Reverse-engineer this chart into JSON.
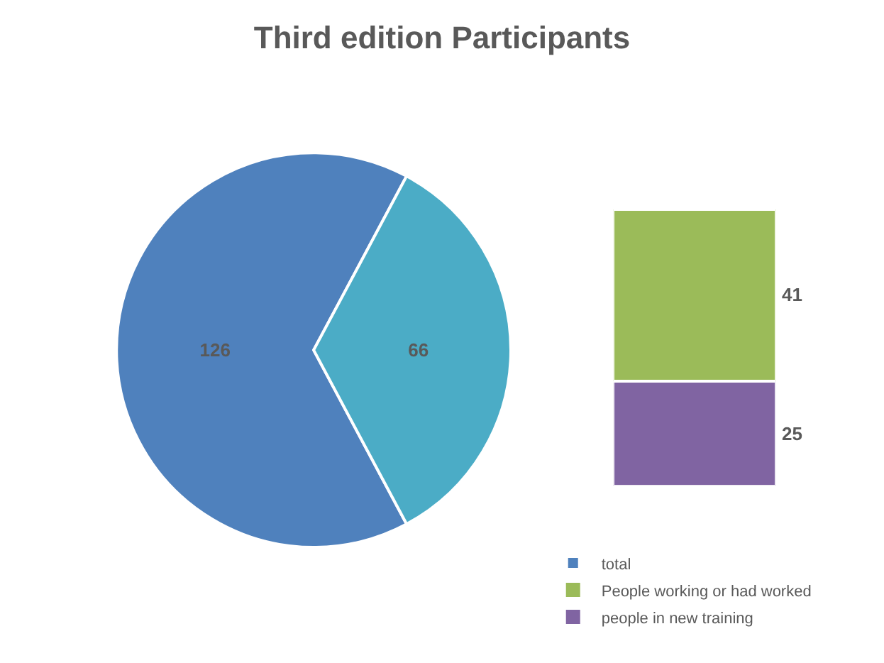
{
  "chart_data": [
    {
      "type": "pie",
      "title": "Third edition Participants",
      "categories": [
        "total",
        null
      ],
      "values": [
        126,
        66
      ],
      "colors": [
        "#4f81bd",
        "#4bacc6"
      ],
      "data_labels": true,
      "legend": "bottom right"
    },
    {
      "type": "bar",
      "stacked": true,
      "categories": [
        null
      ],
      "data_labels": true,
      "legend": "bottom right",
      "series": [
        {
          "name": "people in new training",
          "color": "#8064a2",
          "values": [
            25
          ]
        },
        {
          "name": "People working or had worked",
          "color": "#9bbb59",
          "values": [
            41
          ]
        }
      ]
    }
  ]
}
